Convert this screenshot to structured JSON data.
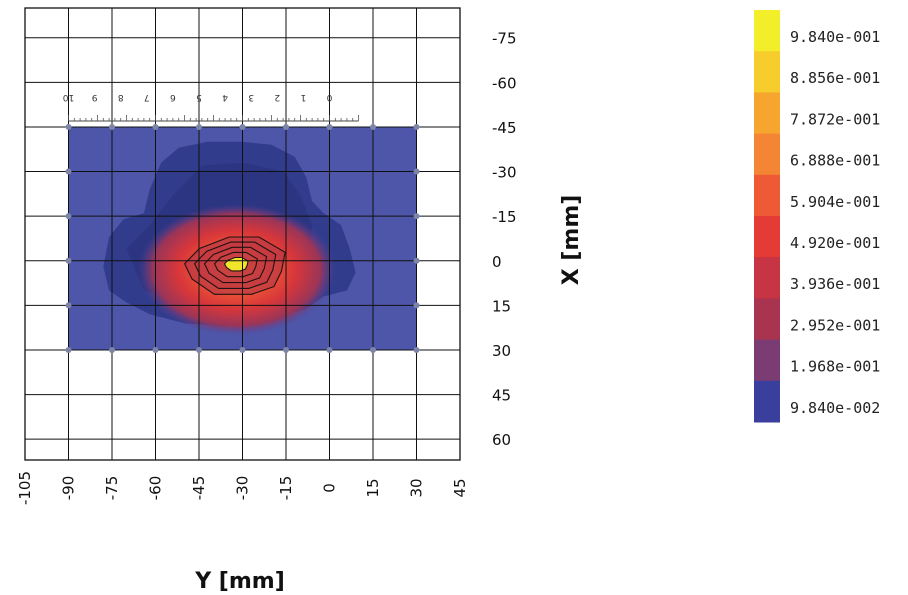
{
  "chart_data": {
    "type": "heatmap",
    "xlabel": "Y [mm]",
    "ylabel": "X [mm]",
    "x_ticks": [
      -105,
      -90,
      -75,
      -60,
      -45,
      -30,
      -15,
      0,
      15,
      30,
      45
    ],
    "y_ticks": [
      -75,
      -60,
      -45,
      -30,
      -15,
      0,
      15,
      30,
      45,
      60
    ],
    "x_range": [
      -105,
      45
    ],
    "y_range": [
      -85,
      67
    ],
    "measured_region": {
      "y_range": [
        -90,
        30
      ],
      "x_range": [
        -45,
        30
      ]
    },
    "hotspot": {
      "y": -32,
      "x": 0,
      "value": 0.984
    },
    "contour_levels": [
      0.984,
      0.7872,
      0.5904,
      0.3936,
      0.1968
    ],
    "ruler_labels": [
      "10",
      "9",
      "8",
      "7",
      "6",
      "5",
      "4",
      "3",
      "2",
      "1",
      "0"
    ],
    "colorbar": {
      "labels": [
        "9.840e-001",
        "8.856e-001",
        "7.872e-001",
        "6.888e-001",
        "5.904e-001",
        "4.920e-001",
        "3.936e-001",
        "2.952e-001",
        "1.968e-001",
        "9.840e-002"
      ],
      "colors": [
        "#f2ee2a",
        "#f6cd2c",
        "#f6a62e",
        "#f48534",
        "#ee5a36",
        "#e43b36",
        "#c73443",
        "#a93450",
        "#7a3c73",
        "#3a3f9e"
      ]
    },
    "grid": true
  }
}
